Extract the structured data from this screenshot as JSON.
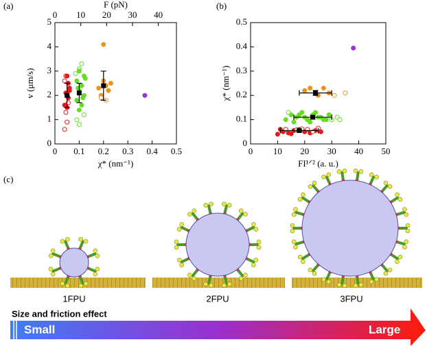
{
  "panel_labels": [
    "(a)",
    "(b)",
    "(c)"
  ],
  "chart_data": [
    {
      "type": "scatter",
      "x_label": "χ* (nm⁻¹)",
      "y_label": "v (μm/s)",
      "x2_label": "F (pN)",
      "xlim": [
        0,
        0.5
      ],
      "xticks": [
        0,
        0.1,
        0.2,
        0.3,
        0.4,
        0.5
      ],
      "ylim": [
        0,
        5
      ],
      "yticks": [
        0,
        1,
        2,
        3,
        4,
        5
      ],
      "x2lim": [
        0,
        47
      ],
      "x2ticks": [
        0,
        10,
        20,
        30,
        40
      ],
      "series": [
        {
          "color": "#e31a1c",
          "marker": "open",
          "x": [
            0.04,
            0.045,
            0.05,
            0.04,
            0.055,
            0.045
          ],
          "values": [
            2.6,
            1.3,
            0.9,
            0.6,
            1.7,
            2.8
          ]
        },
        {
          "color": "#e31a1c",
          "marker": "filled",
          "x": [
            0.05,
            0.06,
            0.045,
            0.055,
            0.05,
            0.04,
            0.06,
            0.05,
            0.055
          ],
          "values": [
            2.8,
            2.3,
            2.1,
            1.9,
            1.5,
            1.6,
            2.2,
            2.0,
            2.5
          ]
        },
        {
          "color": "#66dd22",
          "marker": "open",
          "x": [
            0.11,
            0.1,
            0.09,
            0.1,
            0.12,
            0.085
          ],
          "values": [
            3.3,
            3.1,
            1.0,
            0.8,
            1.2,
            2.9
          ]
        },
        {
          "color": "#66dd22",
          "marker": "filled",
          "x": [
            0.1,
            0.12,
            0.09,
            0.11,
            0.1,
            0.12,
            0.09,
            0.11,
            0.1,
            0.125,
            0.095,
            0.115
          ],
          "values": [
            3.0,
            2.8,
            2.6,
            2.4,
            2.2,
            2.0,
            1.8,
            1.6,
            1.4,
            2.7,
            2.3,
            1.9
          ]
        },
        {
          "color": "#e69521",
          "marker": "filled",
          "x": [
            0.2,
            0.2,
            0.18,
            0.22,
            0.19,
            0.23,
            0.21
          ],
          "values": [
            4.1,
            2.6,
            2.3,
            2.2,
            2.0,
            2.5,
            2.4
          ]
        },
        {
          "color": "#e69521",
          "marker": "open",
          "x": [
            0.19,
            0.21
          ],
          "values": [
            1.9,
            1.8
          ]
        },
        {
          "color": "#a033d0",
          "marker": "filled",
          "x": [
            0.37
          ],
          "values": [
            2.0
          ]
        },
        {
          "color": "#000000",
          "marker": "mean",
          "x": [
            0.05,
            0.1,
            0.2
          ],
          "values": [
            2.0,
            2.1,
            2.4
          ],
          "yerr": [
            0.5,
            0.4,
            0.6
          ]
        }
      ]
    },
    {
      "type": "scatter",
      "x_label": "FI¹ᐟ² (a. u.)",
      "y_label": "χ* (nm⁻¹)",
      "xlim": [
        0,
        50
      ],
      "xticks": [
        0,
        10,
        20,
        30,
        40,
        50
      ],
      "ylim": [
        0,
        0.5
      ],
      "yticks": [
        0,
        0.1,
        0.2,
        0.3,
        0.4,
        0.5
      ],
      "series": [
        {
          "color": "#e31a1c",
          "marker": "filled",
          "x": [
            10,
            12,
            14,
            16,
            18,
            20,
            22,
            24,
            26,
            11,
            15
          ],
          "values": [
            0.04,
            0.05,
            0.045,
            0.055,
            0.06,
            0.05,
            0.045,
            0.055,
            0.05,
            0.06,
            0.042
          ]
        },
        {
          "color": "#e31a1c",
          "marker": "open",
          "x": [
            13,
            17,
            21,
            25,
            23,
            19
          ],
          "values": [
            0.06,
            0.058,
            0.06,
            0.065,
            0.05,
            0.062
          ]
        },
        {
          "color": "#66dd22",
          "marker": "filled",
          "x": [
            13,
            15,
            17,
            19,
            21,
            23,
            25,
            27,
            29,
            16,
            20,
            24,
            28,
            18,
            22,
            26
          ],
          "values": [
            0.1,
            0.12,
            0.11,
            0.13,
            0.1,
            0.12,
            0.11,
            0.1,
            0.12,
            0.09,
            0.11,
            0.13,
            0.1,
            0.12,
            0.09,
            0.11
          ]
        },
        {
          "color": "#66dd22",
          "marker": "open",
          "x": [
            30,
            32,
            33,
            14
          ],
          "values": [
            0.1,
            0.11,
            0.1,
            0.13
          ]
        },
        {
          "color": "#e69521",
          "marker": "filled",
          "x": [
            20,
            22,
            25,
            27,
            29
          ],
          "values": [
            0.22,
            0.23,
            0.2,
            0.23,
            0.21
          ]
        },
        {
          "color": "#e69521",
          "marker": "open",
          "x": [
            35,
            31
          ],
          "values": [
            0.21,
            0.2
          ]
        },
        {
          "color": "#a033d0",
          "marker": "filled",
          "x": [
            38
          ],
          "values": [
            0.395
          ]
        },
        {
          "color": "#000000",
          "marker": "mean",
          "x": [
            18,
            23,
            24
          ],
          "values": [
            0.055,
            0.11,
            0.21
          ],
          "xerr": [
            7,
            7,
            6
          ],
          "yerr": [
            0.005,
            0.008,
            0.01
          ]
        }
      ]
    }
  ],
  "diagram": {
    "labels": [
      "1FPU",
      "2FPU",
      "3FPU"
    ],
    "arrow_title": "Size and friction effect",
    "arrow_left": "Small",
    "arrow_right": "Large"
  }
}
